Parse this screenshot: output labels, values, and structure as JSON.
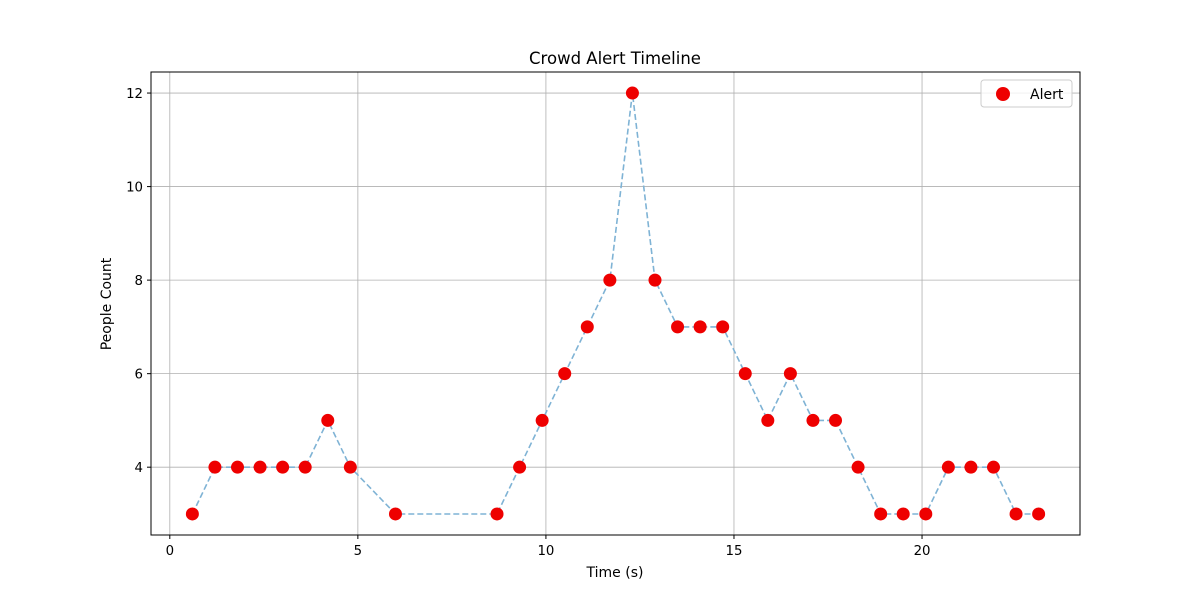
{
  "chart_data": {
    "type": "scatter",
    "title": "Crowd Alert Timeline",
    "xlabel": "Time (s)",
    "ylabel": "People Count",
    "xlim": [
      -0.5,
      24.2
    ],
    "ylim": [
      2.55,
      12.45
    ],
    "xticks": [
      0,
      5,
      10,
      15,
      20
    ],
    "yticks": [
      4,
      6,
      8,
      10,
      12
    ],
    "grid": true,
    "legend_position": "top-right",
    "series": [
      {
        "name": "Alert",
        "marker_color": "#ee0000",
        "line_color": "#7fb3d5",
        "line_style": "dashed",
        "x": [
          0.6,
          1.2,
          1.8,
          2.4,
          3.0,
          3.6,
          4.2,
          4.8,
          6.0,
          8.7,
          9.3,
          9.9,
          10.5,
          11.1,
          11.7,
          12.3,
          12.9,
          13.5,
          14.1,
          14.7,
          15.3,
          15.9,
          16.5,
          17.1,
          17.7,
          18.3,
          18.9,
          19.5,
          20.1,
          20.7,
          21.3,
          21.9,
          22.5,
          23.1
        ],
        "y": [
          3,
          4,
          4,
          4,
          4,
          4,
          5,
          4,
          3,
          3,
          4,
          5,
          6,
          7,
          8,
          12,
          8,
          7,
          7,
          7,
          6,
          5,
          6,
          5,
          5,
          4,
          3,
          3,
          3,
          4,
          4,
          4,
          3,
          3
        ]
      }
    ]
  }
}
